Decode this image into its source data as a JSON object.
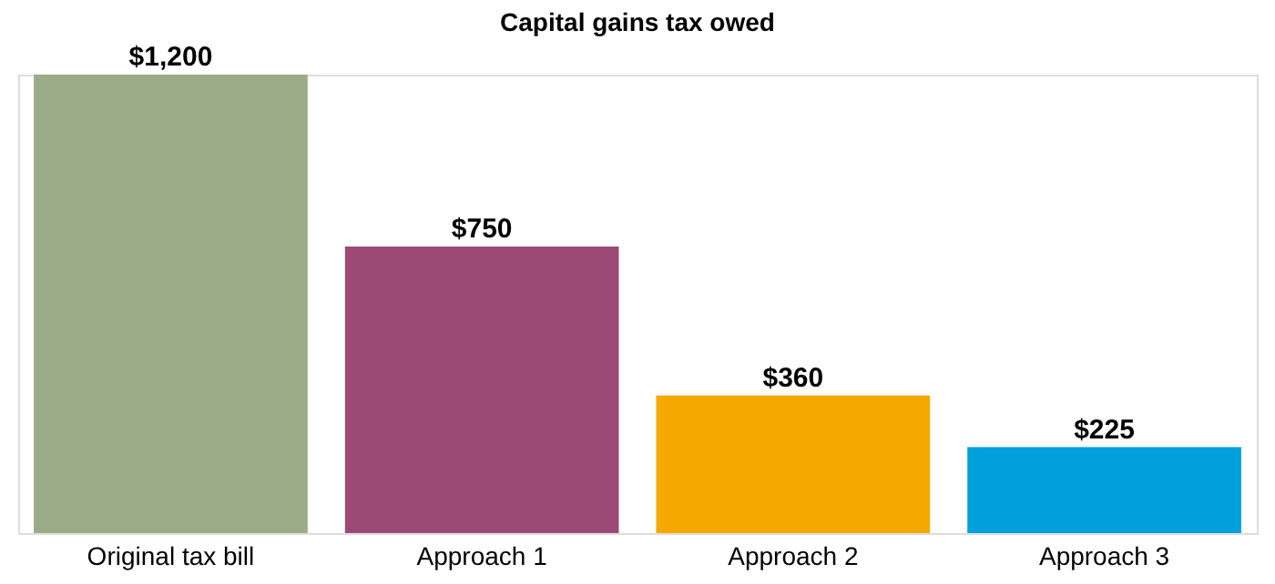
{
  "chart_data": {
    "type": "bar",
    "title": "Capital gains tax owed",
    "categories": [
      "Original tax bill",
      "Approach 1",
      "Approach 2",
      "Approach 3"
    ],
    "values": [
      1200,
      750,
      360,
      225
    ],
    "colors": [
      "#9bab88",
      "#9c4a75",
      "#f5a800",
      "#00a0dc"
    ],
    "value_labels": [
      "$1,200",
      "$750",
      "$360",
      "$225"
    ],
    "ylim": [
      0,
      1200
    ],
    "tick_labels": "x",
    "grid": false
  }
}
